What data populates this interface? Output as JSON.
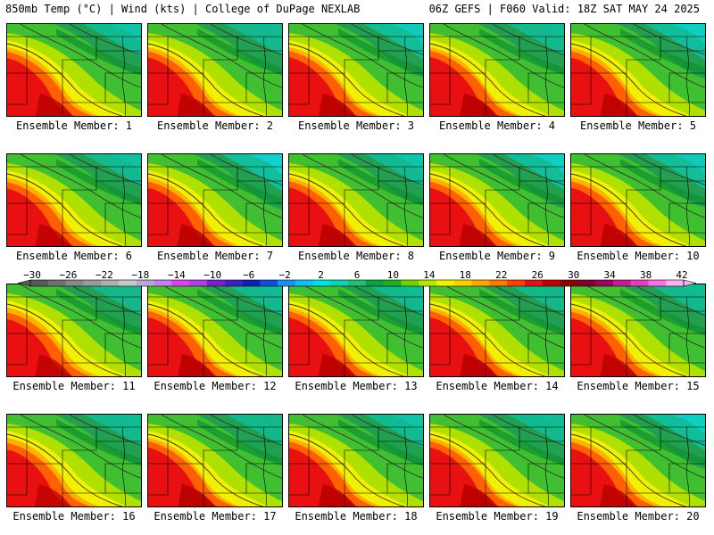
{
  "header": {
    "left": "850mb Temp (°C) | Wind (kts) | College of DuPage NEXLAB",
    "right": "06Z GEFS | F060 Valid: 18Z SAT MAY 24 2025"
  },
  "members": [
    {
      "label": "Ensemble Member: 1",
      "hot": 0.85,
      "cool": 0.7
    },
    {
      "label": "Ensemble Member: 2",
      "hot": 0.9,
      "cool": 0.6
    },
    {
      "label": "Ensemble Member: 3",
      "hot": 0.95,
      "cool": 0.8
    },
    {
      "label": "Ensemble Member: 4",
      "hot": 1.0,
      "cool": 0.6
    },
    {
      "label": "Ensemble Member: 5",
      "hot": 0.9,
      "cool": 0.85
    },
    {
      "label": "Ensemble Member: 6",
      "hot": 0.8,
      "cool": 0.65
    },
    {
      "label": "Ensemble Member: 7",
      "hot": 0.9,
      "cool": 0.9
    },
    {
      "label": "Ensemble Member: 8",
      "hot": 0.95,
      "cool": 0.7
    },
    {
      "label": "Ensemble Member: 9",
      "hot": 0.9,
      "cool": 0.85
    },
    {
      "label": "Ensemble Member: 10",
      "hot": 0.9,
      "cool": 0.8
    },
    {
      "label": "Ensemble Member: 11",
      "hot": 0.75,
      "cool": 0.55
    },
    {
      "label": "Ensemble Member: 12",
      "hot": 1.0,
      "cool": 0.6
    },
    {
      "label": "Ensemble Member: 13",
      "hot": 0.95,
      "cool": 0.6
    },
    {
      "label": "Ensemble Member: 14",
      "hot": 1.0,
      "cool": 0.55
    },
    {
      "label": "Ensemble Member: 15",
      "hot": 0.9,
      "cool": 0.6
    },
    {
      "label": "Ensemble Member: 16",
      "hot": 0.7,
      "cool": 0.6
    },
    {
      "label": "Ensemble Member: 17",
      "hot": 1.0,
      "cool": 0.55
    },
    {
      "label": "Ensemble Member: 18",
      "hot": 0.95,
      "cool": 0.7
    },
    {
      "label": "Ensemble Member: 19",
      "hot": 1.0,
      "cool": 0.6
    },
    {
      "label": "Ensemble Member: 20",
      "hot": 0.85,
      "cool": 0.85
    }
  ],
  "colorbar": {
    "labels": [
      "−30",
      "−26",
      "−22",
      "−18",
      "−14",
      "−10",
      "−6",
      "−2",
      "2",
      "6",
      "10",
      "14",
      "18",
      "22",
      "26",
      "30",
      "34",
      "38",
      "42"
    ],
    "colors": [
      "#5a5a5a",
      "#707070",
      "#888888",
      "#9a9a9a",
      "#b0b0b0",
      "#c8c8c8",
      "#b8a8d8",
      "#c080f0",
      "#e040f0",
      "#b040e0",
      "#7a20d0",
      "#4020c0",
      "#1020b0",
      "#1050d8",
      "#2090f0",
      "#10c0f0",
      "#00e0e0",
      "#10d0b0",
      "#20c070",
      "#10a040",
      "#20b020",
      "#70d000",
      "#b0e800",
      "#f0f000",
      "#ffd000",
      "#ffa800",
      "#ff7800",
      "#ff4000",
      "#e81010",
      "#c00000",
      "#900000",
      "#800030",
      "#a00060",
      "#c02090",
      "#e040c0",
      "#ff70e0",
      "#ffb0f0"
    ]
  }
}
